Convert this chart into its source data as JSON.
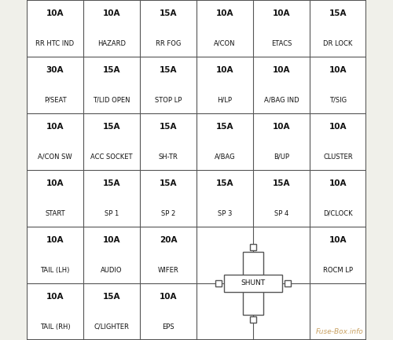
{
  "background_color": "#f0f0ea",
  "grid_color": "#555555",
  "text_color": "#111111",
  "watermark": "Fuse-Box.info",
  "watermark_color": "#c8a060",
  "cols": 6,
  "rows": 6,
  "cells": [
    {
      "row": 0,
      "col": 0,
      "amp": "10A",
      "label": "RR HTC IND"
    },
    {
      "row": 0,
      "col": 1,
      "amp": "10A",
      "label": "HAZARD"
    },
    {
      "row": 0,
      "col": 2,
      "amp": "15A",
      "label": "RR FOG"
    },
    {
      "row": 0,
      "col": 3,
      "amp": "10A",
      "label": "A/CON"
    },
    {
      "row": 0,
      "col": 4,
      "amp": "10A",
      "label": "ETACS"
    },
    {
      "row": 0,
      "col": 5,
      "amp": "15A",
      "label": "DR LOCK"
    },
    {
      "row": 1,
      "col": 0,
      "amp": "30A",
      "label": "P/SEAT"
    },
    {
      "row": 1,
      "col": 1,
      "amp": "15A",
      "label": "T/LID OPEN"
    },
    {
      "row": 1,
      "col": 2,
      "amp": "15A",
      "label": "STOP LP"
    },
    {
      "row": 1,
      "col": 3,
      "amp": "10A",
      "label": "H/LP"
    },
    {
      "row": 1,
      "col": 4,
      "amp": "10A",
      "label": "A/BAG IND"
    },
    {
      "row": 1,
      "col": 5,
      "amp": "10A",
      "label": "T/SIG"
    },
    {
      "row": 2,
      "col": 0,
      "amp": "10A",
      "label": "A/CON SW"
    },
    {
      "row": 2,
      "col": 1,
      "amp": "15A",
      "label": "ACC SOCKET"
    },
    {
      "row": 2,
      "col": 2,
      "amp": "15A",
      "label": "SH-TR"
    },
    {
      "row": 2,
      "col": 3,
      "amp": "15A",
      "label": "A/BAG"
    },
    {
      "row": 2,
      "col": 4,
      "amp": "10A",
      "label": "B/UP"
    },
    {
      "row": 2,
      "col": 5,
      "amp": "10A",
      "label": "CLUSTER"
    },
    {
      "row": 3,
      "col": 0,
      "amp": "10A",
      "label": "START"
    },
    {
      "row": 3,
      "col": 1,
      "amp": "15A",
      "label": "SP 1"
    },
    {
      "row": 3,
      "col": 2,
      "amp": "15A",
      "label": "SP 2"
    },
    {
      "row": 3,
      "col": 3,
      "amp": "15A",
      "label": "SP 3"
    },
    {
      "row": 3,
      "col": 4,
      "amp": "15A",
      "label": "SP 4"
    },
    {
      "row": 3,
      "col": 5,
      "amp": "10A",
      "label": "D/CLOCK"
    },
    {
      "row": 4,
      "col": 0,
      "amp": "10A",
      "label": "TAIL (LH)"
    },
    {
      "row": 4,
      "col": 1,
      "amp": "10A",
      "label": "AUDIO"
    },
    {
      "row": 4,
      "col": 2,
      "amp": "20A",
      "label": "WIFER"
    },
    {
      "row": 4,
      "col": 5,
      "amp": "10A",
      "label": "ROCM LP"
    },
    {
      "row": 5,
      "col": 0,
      "amp": "10A",
      "label": "TAIL (RH)"
    },
    {
      "row": 5,
      "col": 1,
      "amp": "15A",
      "label": "C/LIGHTER"
    },
    {
      "row": 5,
      "col": 2,
      "amp": "10A",
      "label": "EPS"
    }
  ],
  "amp_fontsize": 7.5,
  "label_fontsize": 6.0,
  "shunt_fontsize": 6.5,
  "watermark_fontsize": 6.5
}
